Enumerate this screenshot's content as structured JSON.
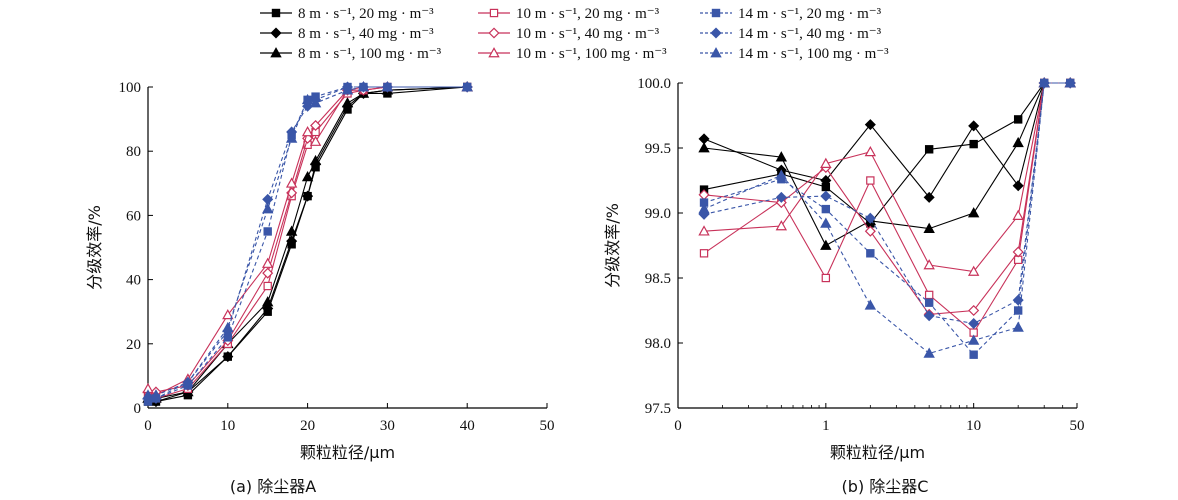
{
  "legend": [
    {
      "label": "8 m · s⁻¹, 20 mg · m⁻³",
      "series": 0
    },
    {
      "label": "10 m · s⁻¹, 20 mg · m⁻³",
      "series": 3
    },
    {
      "label": "14 m · s⁻¹, 20 mg · m⁻³",
      "series": 6
    },
    {
      "label": "8 m · s⁻¹, 40 mg · m⁻³",
      "series": 1
    },
    {
      "label": "10 m · s⁻¹, 40 mg · m⁻³",
      "series": 4
    },
    {
      "label": "14 m · s⁻¹, 40 mg · m⁻³",
      "series": 7
    },
    {
      "label": "8 m · s⁻¹, 100 mg · m⁻³",
      "series": 2
    },
    {
      "label": "10 m · s⁻¹, 100 mg · m⁻³",
      "series": 5
    },
    {
      "label": "14 m · s⁻¹, 100 mg · m⁻³",
      "series": 8
    }
  ],
  "series_styles": [
    {
      "color": "#000000",
      "marker": "square",
      "fill": true,
      "dash": false
    },
    {
      "color": "#000000",
      "marker": "diamond",
      "fill": true,
      "dash": false
    },
    {
      "color": "#000000",
      "marker": "triangle",
      "fill": true,
      "dash": false
    },
    {
      "color": "#c8325a",
      "marker": "square",
      "fill": false,
      "dash": false
    },
    {
      "color": "#c8325a",
      "marker": "diamond",
      "fill": false,
      "dash": false
    },
    {
      "color": "#c8325a",
      "marker": "triangle",
      "fill": false,
      "dash": false
    },
    {
      "color": "#3a56a8",
      "marker": "square",
      "fill": true,
      "dash": true
    },
    {
      "color": "#3a56a8",
      "marker": "diamond",
      "fill": true,
      "dash": true
    },
    {
      "color": "#3a56a8",
      "marker": "triangle",
      "fill": true,
      "dash": true
    }
  ],
  "chart_data": [
    {
      "type": "line",
      "caption": "(a) 除尘器A",
      "xlabel": "颗粒粒径/μm",
      "ylabel": "分级效率/%",
      "xscale": "linear",
      "xlim": [
        0,
        50
      ],
      "ylim": [
        0,
        100
      ],
      "xticks": [
        0,
        10,
        20,
        30,
        40,
        50
      ],
      "yticks": [
        0,
        20,
        40,
        60,
        80,
        100
      ],
      "series": [
        {
          "x": [
            0,
            1,
            5,
            10,
            15,
            18,
            20,
            21,
            25,
            27,
            30,
            40
          ],
          "y": [
            2,
            2,
            4,
            16,
            30,
            51,
            66,
            75,
            93,
            98,
            98,
            100
          ]
        },
        {
          "x": [
            0,
            1,
            5,
            10,
            15,
            18,
            20,
            21,
            25,
            27,
            30,
            40
          ],
          "y": [
            3,
            2,
            5,
            16,
            31,
            52,
            66,
            76,
            94,
            98,
            99,
            100
          ]
        },
        {
          "x": [
            0,
            1,
            5,
            10,
            15,
            18,
            20,
            21,
            25,
            27,
            30,
            40
          ],
          "y": [
            3,
            3,
            5,
            20,
            33,
            55,
            72,
            77,
            95,
            98,
            99,
            100
          ]
        },
        {
          "x": [
            0,
            1,
            5,
            10,
            15,
            18,
            20,
            21,
            25,
            27,
            30,
            40
          ],
          "y": [
            4,
            3,
            6,
            20,
            38,
            66,
            82,
            86,
            98,
            99,
            100,
            100
          ]
        },
        {
          "x": [
            0,
            1,
            5,
            10,
            15,
            18,
            20,
            21,
            25,
            27,
            30,
            40
          ],
          "y": [
            5,
            5,
            7,
            21,
            42,
            67,
            84,
            88,
            99,
            99,
            100,
            100
          ]
        },
        {
          "x": [
            0,
            1,
            5,
            10,
            15,
            18,
            20,
            21,
            25,
            27,
            30,
            40
          ],
          "y": [
            6,
            4,
            9,
            29,
            45,
            70,
            86,
            83,
            99,
            100,
            100,
            100
          ]
        },
        {
          "x": [
            0,
            1,
            5,
            10,
            15,
            18,
            20,
            21,
            25,
            27,
            30,
            40
          ],
          "y": [
            2,
            3,
            7,
            22,
            55,
            85,
            96,
            97,
            100,
            100,
            100,
            100
          ]
        },
        {
          "x": [
            0,
            1,
            5,
            10,
            15,
            18,
            20,
            21,
            25,
            27,
            30,
            40
          ],
          "y": [
            3,
            3,
            8,
            24,
            65,
            86,
            94,
            96,
            100,
            100,
            100,
            100
          ]
        },
        {
          "x": [
            0,
            1,
            5,
            10,
            15,
            18,
            20,
            21,
            25,
            27,
            30,
            40
          ],
          "y": [
            4,
            4,
            8,
            25,
            62,
            84,
            96,
            95,
            99,
            100,
            100,
            100
          ]
        }
      ]
    },
    {
      "type": "line",
      "caption": "(b) 除尘器C",
      "xlabel": "颗粒粒径/μm",
      "ylabel": "分级效率/%",
      "xscale": "log",
      "xlim": [
        0.1,
        50
      ],
      "ylim": [
        97.5,
        100.0
      ],
      "xticks": [
        0.1,
        1,
        10,
        50
      ],
      "xtick_labels": [
        "0",
        "1",
        "10",
        "50"
      ],
      "yticks": [
        97.5,
        98.0,
        98.5,
        99.0,
        99.5,
        100.0
      ],
      "ytick_labels": [
        "97.5",
        "98.0",
        "98.5",
        "99.0",
        "99.5",
        "100.0"
      ],
      "series": [
        {
          "x": [
            0.15,
            0.5,
            1,
            2,
            5,
            10,
            20,
            30,
            45
          ],
          "y": [
            99.18,
            99.3,
            99.2,
            98.92,
            99.49,
            99.53,
            99.72,
            100.0,
            100.0
          ]
        },
        {
          "x": [
            0.15,
            0.5,
            1,
            2,
            5,
            10,
            20,
            30,
            45
          ],
          "y": [
            99.57,
            99.33,
            99.25,
            99.68,
            99.12,
            99.67,
            99.21,
            100.0,
            100.0
          ]
        },
        {
          "x": [
            0.15,
            0.5,
            1,
            2,
            5,
            10,
            20,
            30,
            45
          ],
          "y": [
            99.5,
            99.43,
            98.75,
            98.94,
            98.88,
            99.0,
            99.54,
            100.0,
            100.0
          ]
        },
        {
          "x": [
            0.15,
            0.5,
            1,
            2,
            5,
            10,
            20,
            30,
            45
          ],
          "y": [
            98.69,
            99.1,
            98.5,
            99.25,
            98.37,
            98.08,
            98.64,
            100.0,
            100.0
          ]
        },
        {
          "x": [
            0.15,
            0.5,
            1,
            2,
            5,
            10,
            20,
            30,
            45
          ],
          "y": [
            99.14,
            99.08,
            99.35,
            98.86,
            98.22,
            98.25,
            98.7,
            100.0,
            100.0
          ]
        },
        {
          "x": [
            0.15,
            0.5,
            1,
            2,
            5,
            10,
            20,
            30,
            45
          ],
          "y": [
            98.86,
            98.9,
            99.38,
            99.47,
            98.6,
            98.55,
            98.98,
            100.0,
            100.0
          ]
        },
        {
          "x": [
            0.15,
            0.5,
            1,
            2,
            5,
            10,
            20,
            30,
            45
          ],
          "y": [
            99.08,
            99.26,
            99.03,
            98.69,
            98.31,
            97.91,
            98.25,
            100.0,
            100.0
          ]
        },
        {
          "x": [
            0.15,
            0.5,
            1,
            2,
            5,
            10,
            20,
            30,
            45
          ],
          "y": [
            98.99,
            99.12,
            99.13,
            98.96,
            98.21,
            98.15,
            98.33,
            100.0,
            100.0
          ]
        },
        {
          "x": [
            0.15,
            0.5,
            1,
            2,
            5,
            10,
            20,
            30,
            45
          ],
          "y": [
            99.03,
            99.29,
            98.92,
            98.29,
            97.92,
            98.02,
            98.12,
            100.0,
            100.0
          ]
        }
      ]
    }
  ]
}
